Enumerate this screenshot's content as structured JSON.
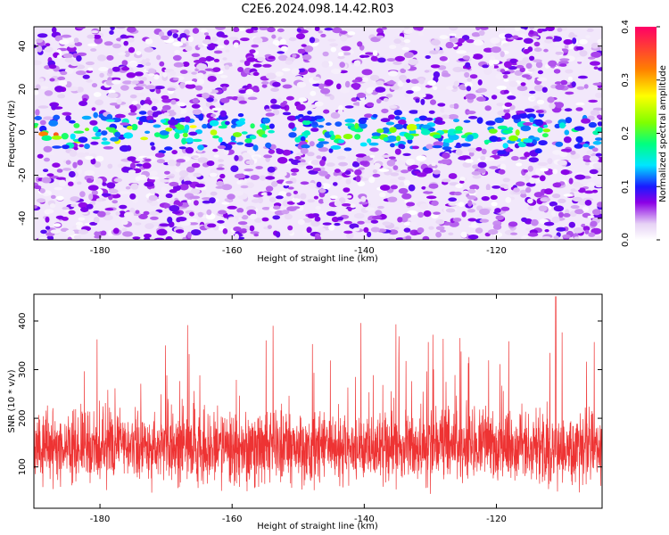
{
  "title": "C2E6.2024.098.14.42.R03",
  "chart_data": [
    {
      "type": "heatmap",
      "xlabel": "Height of straight line (km)",
      "ylabel": "Frequency (Hz)",
      "xlim": [
        -190,
        -104
      ],
      "ylim": [
        -50,
        49
      ],
      "x_ticks": [
        -180,
        -160,
        -140,
        -120
      ],
      "y_ticks": [
        -40,
        -20,
        0,
        20,
        40
      ],
      "grid": false,
      "colormap": {
        "label": "Normalized spectral amplitude",
        "range": [
          0.0,
          0.4
        ],
        "ticks": [
          "0.0",
          "0.1",
          "0.2",
          "0.3",
          "0.4"
        ],
        "stops": [
          {
            "v": 0.0,
            "color": "#ffffff"
          },
          {
            "v": 0.03,
            "color": "#e6d2f5"
          },
          {
            "v": 0.07,
            "color": "#8c00e6"
          },
          {
            "v": 0.1,
            "color": "#1a1aff"
          },
          {
            "v": 0.14,
            "color": "#00e6ff"
          },
          {
            "v": 0.18,
            "color": "#00ff80"
          },
          {
            "v": 0.22,
            "color": "#80ff00"
          },
          {
            "v": 0.27,
            "color": "#ffff00"
          },
          {
            "v": 0.32,
            "color": "#ff8000"
          },
          {
            "v": 0.4,
            "color": "#ff0066"
          }
        ]
      },
      "signal_band": {
        "center_hz": 0,
        "halfwidth_hz": 10
      }
    },
    {
      "type": "line",
      "xlabel": "Height of straight line (km)",
      "ylabel": "SNR (10 * v/v)",
      "xlim": [
        -190,
        -104
      ],
      "ylim": [
        15,
        455
      ],
      "x_ticks": [
        -180,
        -160,
        -140,
        -120
      ],
      "y_ticks": [
        100,
        200,
        300,
        400
      ],
      "grid": false,
      "series": [
        {
          "color": "#ee3333",
          "baseline": 140,
          "spread": 55,
          "peak_max": 450,
          "peak_x": -111
        }
      ]
    }
  ]
}
